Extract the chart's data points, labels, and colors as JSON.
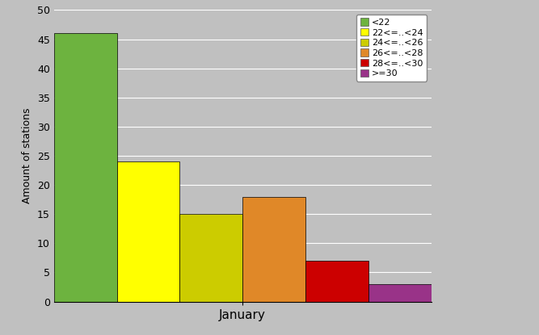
{
  "categories": [
    "<22",
    "22<=..<24",
    "24<=..<26",
    "26<=..<28",
    "28<=..<30",
    ">=30"
  ],
  "values": [
    46,
    24,
    15,
    18,
    7,
    3
  ],
  "colors": [
    "#6db33f",
    "#ffff00",
    "#cccc00",
    "#e08828",
    "#cc0000",
    "#993388"
  ],
  "xlabel": "January",
  "ylabel": "Amount of stations",
  "ylim": [
    0,
    50
  ],
  "yticks": [
    0,
    5,
    10,
    15,
    20,
    25,
    30,
    35,
    40,
    45,
    50
  ],
  "background_color": "#c0c0c0",
  "legend_labels": [
    "<22",
    "22<=..<24",
    "24<=..<26",
    "26<=..<28",
    "28<=..<30",
    ">=30"
  ],
  "figsize": [
    6.67,
    4.15
  ],
  "dpi": 100
}
